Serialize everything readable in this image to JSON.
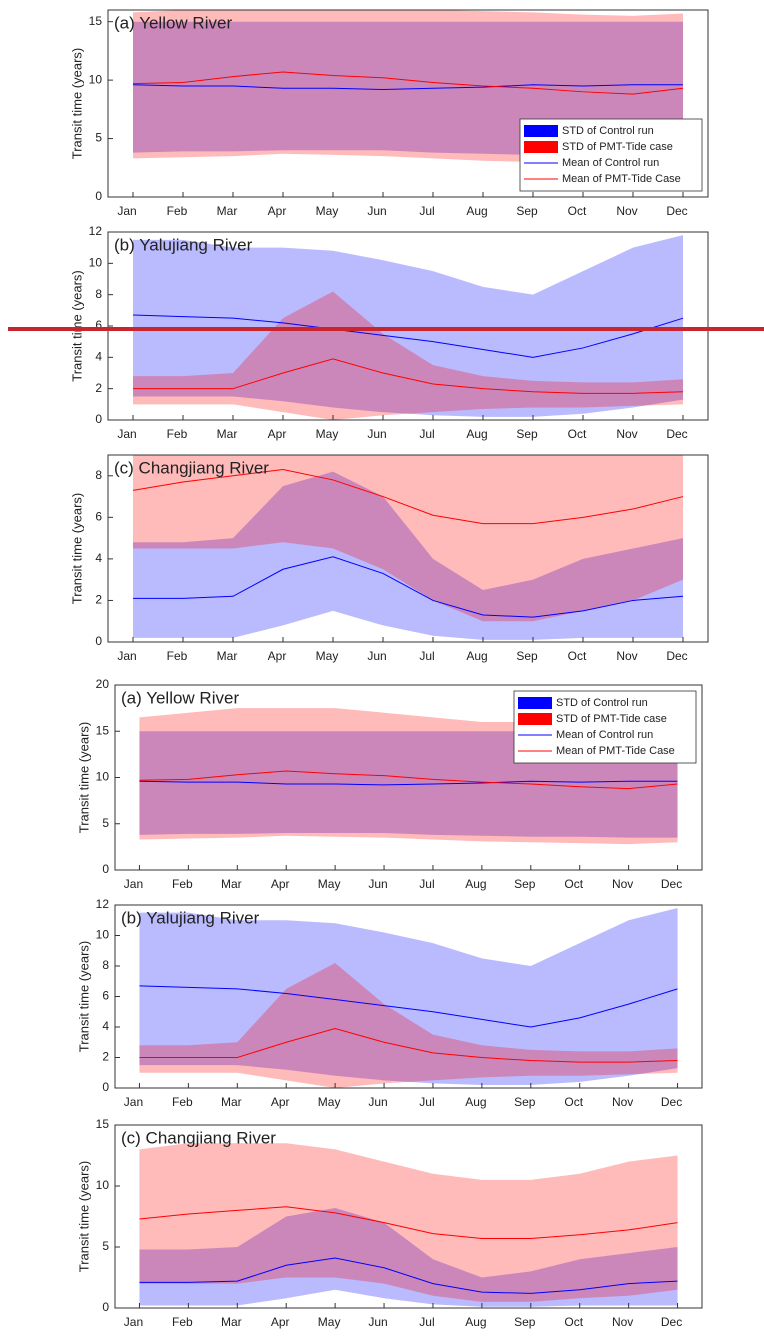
{
  "chart_data": [
    {
      "type": "band-line",
      "title": "(a) Yellow River",
      "ylabel": "Transit time (years)",
      "categories": [
        "Jan",
        "Feb",
        "Mar",
        "Apr",
        "May",
        "Jun",
        "Jul",
        "Aug",
        "Sep",
        "Oct",
        "Nov",
        "Dec"
      ],
      "ylim": [
        0,
        16
      ],
      "yticks": [
        0,
        5,
        10,
        15
      ],
      "legend": "lower right",
      "series": [
        {
          "name": "STD of Control run",
          "color": "#0000ff",
          "lower": [
            3.8,
            3.9,
            3.9,
            4.0,
            4.0,
            4.0,
            3.8,
            3.7,
            3.6,
            3.6,
            3.5,
            3.5
          ],
          "upper": [
            15,
            15,
            15,
            15,
            15,
            15,
            15,
            15,
            15,
            15,
            15,
            15
          ]
        },
        {
          "name": "STD of PMT-Tide case",
          "color": "#ff0000",
          "lower": [
            3.3,
            3.4,
            3.5,
            3.7,
            3.6,
            3.5,
            3.3,
            3.1,
            3.0,
            2.9,
            2.8,
            3.0
          ],
          "upper": [
            15.8,
            16,
            16,
            16,
            16,
            16,
            16,
            15.9,
            15.8,
            15.6,
            15.5,
            15.7
          ]
        },
        {
          "name": "Mean of Control run",
          "color": "#0000ff",
          "values": [
            9.6,
            9.5,
            9.5,
            9.3,
            9.3,
            9.2,
            9.3,
            9.4,
            9.6,
            9.5,
            9.6,
            9.6
          ]
        },
        {
          "name": "Mean of PMT-Tide Case",
          "color": "#ff0000",
          "values": [
            9.7,
            9.8,
            10.3,
            10.7,
            10.4,
            10.2,
            9.8,
            9.5,
            9.3,
            9.0,
            8.8,
            9.3
          ]
        }
      ]
    },
    {
      "type": "band-line",
      "title": "(b) Yalujiang River",
      "ylabel": "Transit time (years)",
      "categories": [
        "Jan",
        "Feb",
        "Mar",
        "Apr",
        "May",
        "Jun",
        "Jul",
        "Aug",
        "Sep",
        "Oct",
        "Nov",
        "Dec"
      ],
      "ylim": [
        0,
        12
      ],
      "yticks": [
        0,
        2,
        4,
        6,
        8,
        10,
        12
      ],
      "series": [
        {
          "color": "#0000ff",
          "lower": [
            1.5,
            1.5,
            1.5,
            1.2,
            0.8,
            0.5,
            0.3,
            0.2,
            0.2,
            0.4,
            0.8,
            1.3
          ],
          "upper": [
            11.5,
            11.5,
            11,
            11,
            10.8,
            10.2,
            9.5,
            8.5,
            8,
            9.5,
            11,
            11.8
          ]
        },
        {
          "color": "#ff0000",
          "lower": [
            1.0,
            1.0,
            1.0,
            0.5,
            0.0,
            0.3,
            0.5,
            0.7,
            0.8,
            0.8,
            0.9,
            1.0
          ],
          "upper": [
            2.8,
            2.8,
            3,
            6.5,
            8.2,
            5.5,
            3.5,
            2.8,
            2.5,
            2.4,
            2.4,
            2.6
          ]
        },
        {
          "color": "#0000ff",
          "values": [
            6.7,
            6.6,
            6.5,
            6.2,
            5.8,
            5.4,
            5.0,
            4.5,
            4.0,
            4.6,
            5.5,
            6.5
          ]
        },
        {
          "color": "#ff0000",
          "values": [
            2.0,
            2.0,
            2.0,
            3.0,
            3.9,
            3.0,
            2.3,
            2.0,
            1.8,
            1.7,
            1.7,
            1.8
          ]
        }
      ]
    },
    {
      "type": "band-line",
      "title": "(c) Changjiang River",
      "ylabel": "Transit time (years)",
      "categories": [
        "Jan",
        "Feb",
        "Mar",
        "Apr",
        "May",
        "Jun",
        "Jul",
        "Aug",
        "Sep",
        "Oct",
        "Nov",
        "Dec"
      ],
      "ylim": [
        0,
        9
      ],
      "yticks": [
        0,
        2,
        4,
        6,
        8
      ],
      "series": [
        {
          "color": "#0000ff",
          "lower": [
            0.2,
            0.2,
            0.2,
            0.8,
            1.5,
            0.8,
            0.3,
            0.1,
            0.1,
            0.2,
            0.2,
            0.2
          ],
          "upper": [
            4.8,
            4.8,
            5,
            7.5,
            8.2,
            7,
            4,
            2.5,
            3,
            4,
            4.5,
            5
          ]
        },
        {
          "color": "#ff0000",
          "lower": [
            4.5,
            4.5,
            4.5,
            4.8,
            4.5,
            3.5,
            2,
            1,
            1,
            1.5,
            2,
            3
          ],
          "upper": [
            9,
            9,
            9,
            9,
            9,
            9,
            9,
            9,
            9,
            9,
            9,
            9
          ]
        },
        {
          "color": "#0000ff",
          "values": [
            2.1,
            2.1,
            2.2,
            3.5,
            4.1,
            3.3,
            2.0,
            1.3,
            1.2,
            1.5,
            2.0,
            2.2
          ]
        },
        {
          "color": "#ff0000",
          "values": [
            7.3,
            7.7,
            8.0,
            8.3,
            7.8,
            7.0,
            6.1,
            5.7,
            5.7,
            6.0,
            6.4,
            7.0
          ]
        }
      ]
    },
    {
      "type": "band-line",
      "title": "(a) Yellow River",
      "ylabel": "Transit time (years)",
      "categories": [
        "Jan",
        "Feb",
        "Mar",
        "Apr",
        "May",
        "Jun",
        "Jul",
        "Aug",
        "Sep",
        "Oct",
        "Nov",
        "Dec"
      ],
      "ylim": [
        0,
        20
      ],
      "yticks": [
        0,
        5,
        10,
        15,
        20
      ],
      "legend": "upper right",
      "series": [
        {
          "name": "STD of Control run",
          "color": "#0000ff",
          "lower": [
            3.8,
            3.9,
            3.9,
            4.0,
            4.0,
            4.0,
            3.8,
            3.7,
            3.6,
            3.6,
            3.5,
            3.5
          ],
          "upper": [
            15,
            15,
            15,
            15,
            15,
            15,
            15,
            15,
            15,
            15,
            15,
            15
          ]
        },
        {
          "name": "STD of PMT-Tide case",
          "color": "#ff0000",
          "lower": [
            3.3,
            3.4,
            3.5,
            3.7,
            3.6,
            3.5,
            3.3,
            3.1,
            3.0,
            2.9,
            2.8,
            3.0
          ],
          "upper": [
            16.5,
            17,
            17.5,
            17.5,
            17.5,
            17,
            16.5,
            16,
            16,
            16,
            15.5,
            16
          ]
        },
        {
          "name": "Mean of Control run",
          "color": "#0000ff",
          "values": [
            9.6,
            9.5,
            9.5,
            9.3,
            9.3,
            9.2,
            9.3,
            9.4,
            9.6,
            9.5,
            9.6,
            9.6
          ]
        },
        {
          "name": "Mean of PMT-Tide Case",
          "color": "#ff0000",
          "values": [
            9.7,
            9.8,
            10.3,
            10.7,
            10.4,
            10.2,
            9.8,
            9.5,
            9.3,
            9.0,
            8.8,
            9.3
          ]
        }
      ]
    },
    {
      "type": "band-line",
      "title": "(b) Yalujiang River",
      "ylabel": "Transit time (years)",
      "categories": [
        "Jan",
        "Feb",
        "Mar",
        "Apr",
        "May",
        "Jun",
        "Jul",
        "Aug",
        "Sep",
        "Oct",
        "Nov",
        "Dec"
      ],
      "ylim": [
        0,
        12
      ],
      "yticks": [
        0,
        2,
        4,
        6,
        8,
        10,
        12
      ],
      "series": [
        {
          "color": "#0000ff",
          "lower": [
            1.5,
            1.5,
            1.5,
            1.2,
            0.8,
            0.5,
            0.3,
            0.2,
            0.2,
            0.4,
            0.8,
            1.3
          ],
          "upper": [
            11.5,
            11.5,
            11,
            11,
            10.8,
            10.2,
            9.5,
            8.5,
            8,
            9.5,
            11,
            11.8
          ]
        },
        {
          "color": "#ff0000",
          "lower": [
            1.0,
            1.0,
            1.0,
            0.5,
            0.0,
            0.3,
            0.5,
            0.7,
            0.8,
            0.8,
            0.9,
            1.0
          ],
          "upper": [
            2.8,
            2.8,
            3,
            6.5,
            8.2,
            5.5,
            3.5,
            2.8,
            2.5,
            2.4,
            2.4,
            2.6
          ]
        },
        {
          "color": "#0000ff",
          "values": [
            6.7,
            6.6,
            6.5,
            6.2,
            5.8,
            5.4,
            5.0,
            4.5,
            4.0,
            4.6,
            5.5,
            6.5
          ]
        },
        {
          "color": "#ff0000",
          "values": [
            2.0,
            2.0,
            2.0,
            3.0,
            3.9,
            3.0,
            2.3,
            2.0,
            1.8,
            1.7,
            1.7,
            1.8
          ]
        }
      ]
    },
    {
      "type": "band-line",
      "title": "(c) Changjiang River",
      "ylabel": "Transit time (years)",
      "categories": [
        "Jan",
        "Feb",
        "Mar",
        "Apr",
        "May",
        "Jun",
        "Jul",
        "Aug",
        "Sep",
        "Oct",
        "Nov",
        "Dec"
      ],
      "ylim": [
        0,
        15
      ],
      "yticks": [
        0,
        5,
        10,
        15
      ],
      "series": [
        {
          "color": "#0000ff",
          "lower": [
            0.2,
            0.2,
            0.2,
            0.8,
            1.5,
            0.8,
            0.3,
            0.1,
            0.1,
            0.2,
            0.2,
            0.2
          ],
          "upper": [
            4.8,
            4.8,
            5,
            7.5,
            8.2,
            7,
            4,
            2.5,
            3,
            4,
            4.5,
            5
          ]
        },
        {
          "color": "#ff0000",
          "lower": [
            2,
            2,
            2,
            2.5,
            2.5,
            2,
            1,
            0.5,
            0.5,
            0.8,
            1,
            1.5
          ],
          "upper": [
            13,
            13.5,
            13.5,
            13.5,
            13,
            12,
            11,
            10.5,
            10.5,
            11,
            12,
            12.5
          ]
        },
        {
          "color": "#0000ff",
          "values": [
            2.1,
            2.1,
            2.2,
            3.5,
            4.1,
            3.3,
            2.0,
            1.3,
            1.2,
            1.5,
            2.0,
            2.2
          ]
        },
        {
          "color": "#ff0000",
          "values": [
            7.3,
            7.7,
            8.0,
            8.3,
            7.8,
            7.0,
            6.1,
            5.7,
            5.7,
            6.0,
            6.4,
            7.0
          ]
        }
      ]
    }
  ]
}
